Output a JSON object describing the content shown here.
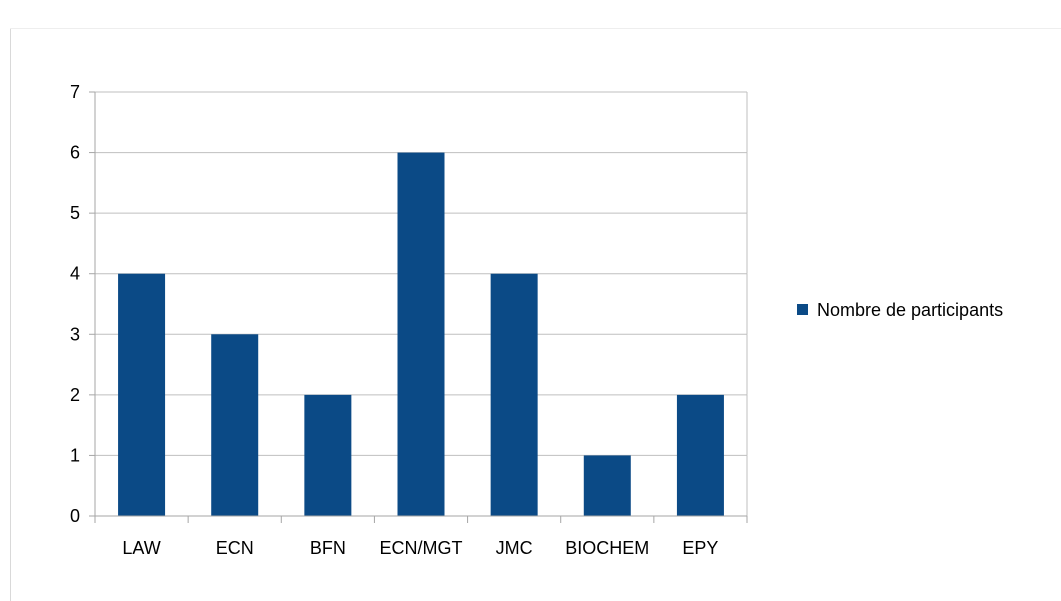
{
  "chart_data": {
    "type": "bar",
    "categories": [
      "LAW",
      "ECN",
      "BFN",
      "ECN/MGT",
      "JMC",
      "BIOCHEM",
      "EPY"
    ],
    "series": [
      {
        "name": "Nombre de participants",
        "values": [
          4,
          3,
          2,
          6,
          4,
          1,
          2
        ],
        "color": "#0B4A86"
      }
    ],
    "yticks": [
      "0",
      "1",
      "2",
      "3",
      "4",
      "5",
      "6",
      "7"
    ],
    "ylim": [
      0,
      7
    ],
    "grid": true,
    "legend_position": "right",
    "colors": {
      "bar": "#0B4A86",
      "grid": "#bfbfbf",
      "axis": "#a6a6a6",
      "text": "#000000"
    }
  }
}
